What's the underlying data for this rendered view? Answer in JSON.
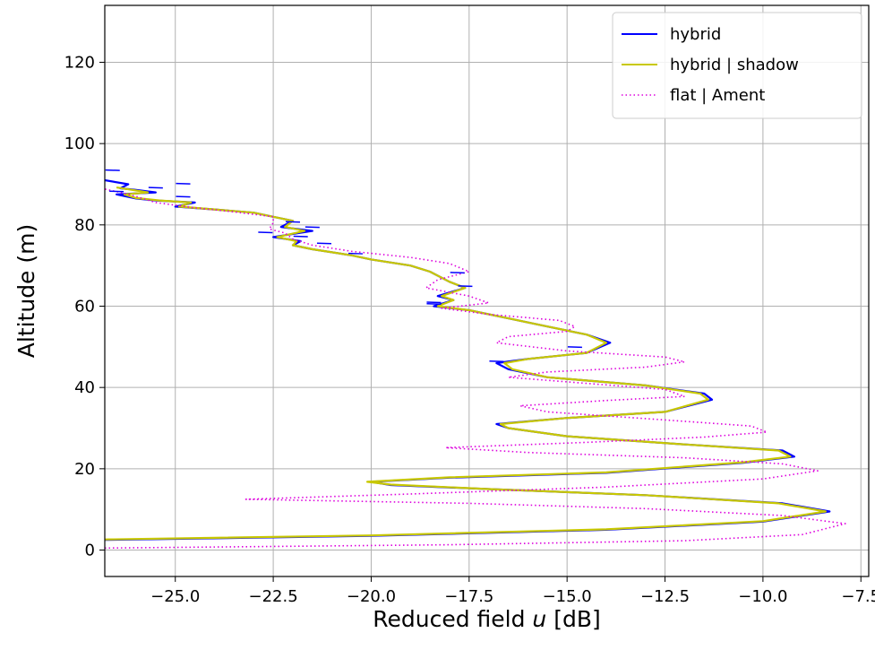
{
  "chart_data": {
    "type": "line",
    "title": "",
    "xlabel": "Reduced field u [dB]",
    "xlabel_prefix": "Reduced field ",
    "xlabel_var": "u",
    "xlabel_suffix": " [dB]",
    "ylabel": "Altitude (m)",
    "xlim": [
      -26.8,
      -7.3
    ],
    "ylim": [
      -6.5,
      134
    ],
    "xticks": [
      -25.0,
      -22.5,
      -20.0,
      -17.5,
      -15.0,
      -12.5,
      -10.0,
      -7.5
    ],
    "xtick_labels": [
      "−25.0",
      "−22.5",
      "−20.0",
      "−17.5",
      "−15.0",
      "−12.5",
      "−10.0",
      "−7.5"
    ],
    "yticks": [
      0,
      20,
      40,
      60,
      80,
      100,
      120
    ],
    "ytick_labels": [
      "0",
      "20",
      "40",
      "60",
      "80",
      "100",
      "120"
    ],
    "grid": true,
    "legend_position": "top-right",
    "series": [
      {
        "name": "hybrid",
        "color": "#0000ff",
        "style": "solid",
        "points": [
          [
            -26.8,
            2.5
          ],
          [
            -20,
            3.5
          ],
          [
            -14,
            5
          ],
          [
            -10,
            7
          ],
          [
            -8.3,
            9.5
          ],
          [
            -9.5,
            11.5
          ],
          [
            -13,
            13.5
          ],
          [
            -17,
            15
          ],
          [
            -19.5,
            16
          ],
          [
            -20,
            16.8
          ],
          [
            -18,
            17.8
          ],
          [
            -14,
            19
          ],
          [
            -10.5,
            21.5
          ],
          [
            -9.2,
            23
          ],
          [
            -9.5,
            24.5
          ],
          [
            -12,
            26
          ],
          [
            -15,
            28
          ],
          [
            -16.5,
            30
          ],
          [
            -16.8,
            31
          ],
          [
            -15,
            32.5
          ],
          [
            -12.5,
            34
          ],
          [
            -11.3,
            37
          ],
          [
            -11.5,
            38.5
          ],
          [
            -13,
            40.5
          ],
          [
            -15.5,
            42.5
          ],
          [
            -16.5,
            44.5
          ],
          [
            -16.8,
            46
          ],
          [
            -16,
            47
          ],
          [
            -14.5,
            48.5
          ],
          [
            -13.9,
            51
          ],
          [
            -14.5,
            53
          ],
          [
            -15.5,
            55
          ],
          [
            -16.5,
            57
          ],
          [
            -17.5,
            59
          ],
          [
            -18.4,
            60
          ],
          [
            -17.9,
            61.5
          ],
          [
            -18.3,
            62.5
          ],
          [
            -17.6,
            64.5
          ],
          [
            -18,
            66
          ],
          [
            -18.5,
            68.5
          ],
          [
            -19,
            70
          ],
          [
            -20,
            71.5
          ],
          [
            -20.5,
            72.5
          ],
          [
            -21.5,
            74
          ],
          [
            -22,
            75
          ],
          [
            -21.8,
            76
          ],
          [
            -22.5,
            77
          ],
          [
            -21.5,
            78.5
          ],
          [
            -22.3,
            79.5
          ],
          [
            -22,
            81
          ],
          [
            -22.5,
            82
          ],
          [
            -23,
            83
          ],
          [
            -24,
            83.8
          ],
          [
            -25,
            84.5
          ],
          [
            -24.5,
            85.5
          ],
          [
            -25.5,
            86
          ],
          [
            -26,
            86.5
          ],
          [
            -26.5,
            87.5
          ],
          [
            -25.5,
            88
          ],
          [
            -26,
            88.6
          ],
          [
            -26.4,
            89
          ],
          [
            -26.2,
            90
          ],
          [
            -26.8,
            91
          ]
        ]
      },
      {
        "name": "hybrid | shadow",
        "color": "#c8c800",
        "style": "solid",
        "points": [
          [
            -26.8,
            2.6
          ],
          [
            -20,
            3.6
          ],
          [
            -14,
            5.1
          ],
          [
            -10,
            7.1
          ],
          [
            -8.4,
            9.5
          ],
          [
            -9.6,
            11.5
          ],
          [
            -13,
            13.5
          ],
          [
            -17,
            15
          ],
          [
            -19.5,
            16.1
          ],
          [
            -20.1,
            16.8
          ],
          [
            -18,
            17.9
          ],
          [
            -14,
            19.1
          ],
          [
            -10.5,
            21.6
          ],
          [
            -9.3,
            23
          ],
          [
            -9.6,
            24.5
          ],
          [
            -12,
            26
          ],
          [
            -15,
            28
          ],
          [
            -16.5,
            30
          ],
          [
            -16.7,
            31
          ],
          [
            -15,
            32.5
          ],
          [
            -12.5,
            34
          ],
          [
            -11.4,
            37
          ],
          [
            -11.6,
            38.5
          ],
          [
            -13,
            40.5
          ],
          [
            -15.5,
            42.5
          ],
          [
            -16.4,
            44.5
          ],
          [
            -16.6,
            46
          ],
          [
            -16,
            47
          ],
          [
            -14.5,
            48.5
          ],
          [
            -14,
            51
          ],
          [
            -14.5,
            53
          ],
          [
            -15.5,
            55
          ],
          [
            -16.5,
            57
          ],
          [
            -17.5,
            59
          ],
          [
            -18.3,
            60
          ],
          [
            -17.9,
            61.5
          ],
          [
            -18.2,
            62.5
          ],
          [
            -17.6,
            64.5
          ],
          [
            -18,
            66
          ],
          [
            -18.5,
            68.5
          ],
          [
            -19,
            70
          ],
          [
            -20,
            71.5
          ],
          [
            -20.5,
            72.5
          ],
          [
            -21.5,
            74
          ],
          [
            -22,
            75
          ],
          [
            -21.9,
            76
          ],
          [
            -22.4,
            77
          ],
          [
            -21.7,
            78.5
          ],
          [
            -22.2,
            79.5
          ],
          [
            -22,
            81
          ],
          [
            -22.5,
            82
          ],
          [
            -23,
            83
          ],
          [
            -24,
            83.8
          ],
          [
            -24.9,
            84.5
          ],
          [
            -24.6,
            85.5
          ],
          [
            -25.4,
            86
          ],
          [
            -26,
            86.6
          ],
          [
            -26.3,
            87.5
          ],
          [
            -25.7,
            88
          ],
          [
            -26.1,
            88.6
          ],
          [
            -26.5,
            89.2
          ]
        ]
      },
      {
        "name": "flat | Ament",
        "color": "#dd00dd",
        "style": "dotted",
        "points": [
          [
            -26.8,
            0.5
          ],
          [
            -18,
            1.3
          ],
          [
            -12,
            2.3
          ],
          [
            -9,
            3.8
          ],
          [
            -7.9,
            6.5
          ],
          [
            -9.5,
            8.5
          ],
          [
            -13,
            10.2
          ],
          [
            -17.5,
            11.5
          ],
          [
            -23.2,
            12.5
          ],
          [
            -19,
            13.8
          ],
          [
            -14,
            15.5
          ],
          [
            -10,
            17.5
          ],
          [
            -8.6,
            19.5
          ],
          [
            -9.5,
            21.2
          ],
          [
            -12,
            22.7
          ],
          [
            -16,
            24
          ],
          [
            -18.1,
            25.2
          ],
          [
            -14.5,
            26.5
          ],
          [
            -11.5,
            27.8
          ],
          [
            -9.9,
            29
          ],
          [
            -10.3,
            30.5
          ],
          [
            -12.5,
            32
          ],
          [
            -15.5,
            34
          ],
          [
            -16.2,
            35.5
          ],
          [
            -14,
            36.8
          ],
          [
            -12,
            37.8
          ],
          [
            -12.5,
            39.5
          ],
          [
            -14.5,
            41
          ],
          [
            -16.5,
            42.5
          ],
          [
            -15.5,
            43.8
          ],
          [
            -13,
            45
          ],
          [
            -12,
            46.3
          ],
          [
            -12.5,
            47.5
          ],
          [
            -15,
            49
          ],
          [
            -16.8,
            51
          ],
          [
            -16.5,
            52.5
          ],
          [
            -15,
            53.8
          ],
          [
            -14.8,
            55
          ],
          [
            -15.2,
            56.5
          ],
          [
            -17,
            58
          ],
          [
            -18.2,
            59.5
          ],
          [
            -17,
            60.8
          ],
          [
            -17.5,
            62.5
          ],
          [
            -18.6,
            64.5
          ],
          [
            -18.3,
            66.5
          ],
          [
            -17.5,
            68.5
          ],
          [
            -18,
            70.5
          ],
          [
            -19,
            72
          ],
          [
            -20.5,
            73.5
          ],
          [
            -21.5,
            75
          ],
          [
            -22,
            76.5
          ],
          [
            -22.2,
            78
          ],
          [
            -22.6,
            79
          ],
          [
            -22.5,
            80.5
          ],
          [
            -22.5,
            82
          ],
          [
            -23.5,
            83.2
          ],
          [
            -24.5,
            84.2
          ],
          [
            -25.5,
            85.5
          ],
          [
            -26,
            87
          ],
          [
            -26.4,
            88
          ],
          [
            -26.8,
            88.8
          ]
        ]
      }
    ],
    "blue_spikes": [
      [
        -26.6,
        93.5
      ],
      [
        -24.8,
        90.2
      ],
      [
        -25.5,
        89.2
      ],
      [
        -26.5,
        88.3
      ],
      [
        -24.8,
        87
      ],
      [
        -22,
        80.8
      ],
      [
        -21.5,
        79.5
      ],
      [
        -22.7,
        78.2
      ],
      [
        -21.8,
        77.2
      ],
      [
        -21.2,
        75.5
      ],
      [
        -20.4,
        73
      ],
      [
        -17.8,
        68.3
      ],
      [
        -17.6,
        65
      ],
      [
        -18.4,
        61
      ],
      [
        -18.4,
        60.6
      ],
      [
        -14.8,
        50
      ],
      [
        -16.8,
        46.5
      ]
    ]
  }
}
